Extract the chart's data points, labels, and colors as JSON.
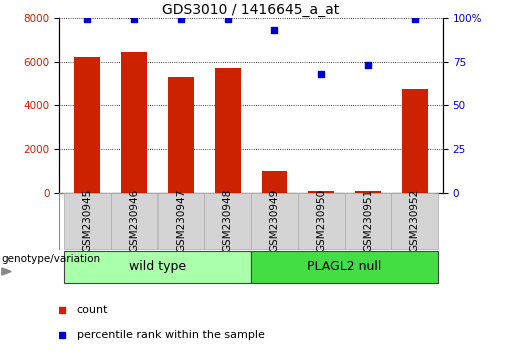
{
  "title": "GDS3010 / 1416645_a_at",
  "samples": [
    "GSM230945",
    "GSM230946",
    "GSM230947",
    "GSM230948",
    "GSM230949",
    "GSM230950",
    "GSM230951",
    "GSM230952"
  ],
  "counts": [
    6200,
    6450,
    5300,
    5700,
    1000,
    100,
    100,
    4750
  ],
  "percentiles": [
    99,
    99,
    99,
    99,
    93,
    68,
    73,
    99
  ],
  "bar_color": "#cc2200",
  "dot_color": "#0000cc",
  "ylim_left": [
    0,
    8000
  ],
  "ylim_right": [
    0,
    100
  ],
  "yticks_left": [
    0,
    2000,
    4000,
    6000,
    8000
  ],
  "yticks_right": [
    0,
    25,
    50,
    75,
    100
  ],
  "groups": [
    {
      "label": "wild type",
      "start": 0,
      "end": 4,
      "color": "#aaffaa"
    },
    {
      "label": "PLAGL2 null",
      "start": 4,
      "end": 8,
      "color": "#44dd44"
    }
  ],
  "genotype_label": "genotype/variation",
  "legend_items": [
    {
      "label": "count",
      "color": "#cc2200"
    },
    {
      "label": "percentile rank within the sample",
      "color": "#0000cc"
    }
  ],
  "title_fontsize": 10,
  "tick_fontsize": 7.5,
  "label_fontsize": 8,
  "group_label_fontsize": 9
}
